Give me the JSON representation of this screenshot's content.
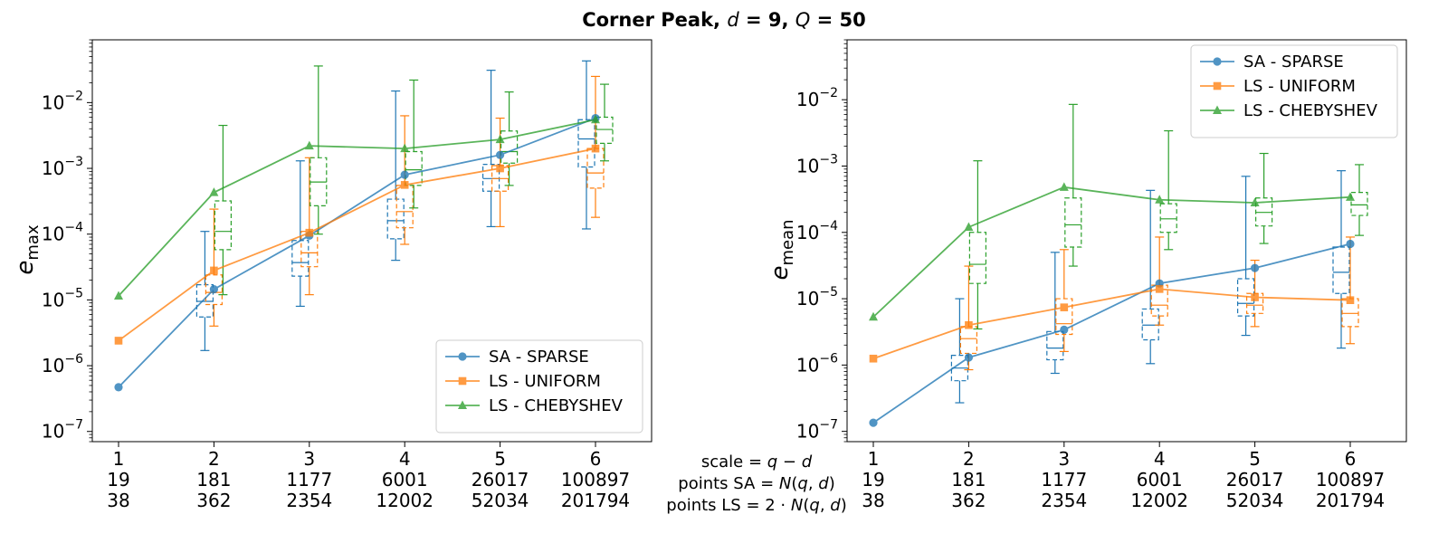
{
  "chart_data": [
    {
      "type": "line",
      "title_parts": [
        "Corner Peak, ",
        "d",
        " = 9, ",
        "Q",
        " = 50"
      ],
      "ylabel_main": "e",
      "ylabel_sub": "max",
      "yscale": "log",
      "ylim": [
        7e-08,
        0.09
      ],
      "yticks": [
        1e-07,
        1e-06,
        1e-05,
        0.0001,
        0.001,
        0.01
      ],
      "ytick_labels": [
        [
          "10",
          "−7"
        ],
        [
          "10",
          "−6"
        ],
        [
          "10",
          "−5"
        ],
        [
          "10",
          "−4"
        ],
        [
          "10",
          "−3"
        ],
        [
          "10",
          "−2"
        ]
      ],
      "categories": [
        "1",
        "2",
        "3",
        "4",
        "5",
        "6"
      ],
      "tick_rows": [
        [
          "1",
          "2",
          "3",
          "4",
          "5",
          "6"
        ],
        [
          "19",
          "181",
          "1177",
          "6001",
          "26017",
          "100897"
        ],
        [
          "38",
          "362",
          "2354",
          "12002",
          "52034",
          "201794"
        ]
      ],
      "legend_position": "lower right",
      "series": [
        {
          "name": "SA - SPARSE",
          "color": "#1f77b4",
          "marker": "circle",
          "values": [
            4.7e-07,
            1.45e-05,
            9.5e-05,
            0.0008,
            0.0016,
            0.0058
          ]
        },
        {
          "name": "LS - UNIFORM",
          "color": "#ff7f0e",
          "marker": "square",
          "values": [
            2.4e-06,
            2.8e-05,
            0.000105,
            0.00056,
            0.001,
            0.002
          ]
        },
        {
          "name": "LS - CHEBYSHEV",
          "color": "#2ca02c",
          "marker": "triangle",
          "values": [
            1.15e-05,
            0.00043,
            0.0022,
            0.002,
            0.00275,
            0.0055
          ]
        }
      ],
      "boxes": [
        {
          "series": 0,
          "x": 2,
          "whislo": 1.7e-06,
          "q1": 5.5e-06,
          "med": 9.5e-06,
          "q3": 1.7e-05,
          "whishi": 0.00011
        },
        {
          "series": 1,
          "x": 2,
          "whislo": 4e-06,
          "q1": 8.5e-06,
          "med": 1.3e-05,
          "q3": 2.4e-05,
          "whishi": 0.00024
        },
        {
          "series": 2,
          "x": 2,
          "whislo": 1.2e-05,
          "q1": 5.8e-05,
          "med": 0.00011,
          "q3": 0.00032,
          "whishi": 0.0045
        },
        {
          "series": 0,
          "x": 3,
          "whislo": 8e-06,
          "q1": 2.3e-05,
          "med": 3.7e-05,
          "q3": 8e-05,
          "whishi": 0.0013
        },
        {
          "series": 1,
          "x": 3,
          "whislo": 1.2e-05,
          "q1": 3.2e-05,
          "med": 5.2e-05,
          "q3": 0.00011,
          "whishi": 0.00145
        },
        {
          "series": 2,
          "x": 3,
          "whislo": 0.0001,
          "q1": 0.00027,
          "med": 0.00062,
          "q3": 0.00145,
          "whishi": 0.036
        },
        {
          "series": 0,
          "x": 4,
          "whislo": 4e-05,
          "q1": 8.5e-05,
          "med": 0.00016,
          "q3": 0.00034,
          "whishi": 0.015
        },
        {
          "series": 1,
          "x": 4,
          "whislo": 7e-05,
          "q1": 0.000125,
          "med": 0.00022,
          "q3": 0.00055,
          "whishi": 0.0063
        },
        {
          "series": 2,
          "x": 4,
          "whislo": 0.00025,
          "q1": 0.00055,
          "med": 0.00095,
          "q3": 0.0018,
          "whishi": 0.022
        },
        {
          "series": 0,
          "x": 5,
          "whislo": 0.00013,
          "q1": 0.00045,
          "med": 0.0007,
          "q3": 0.00115,
          "whishi": 0.031
        },
        {
          "series": 1,
          "x": 5,
          "whislo": 0.00013,
          "q1": 0.00045,
          "med": 0.0007,
          "q3": 0.0011,
          "whishi": 0.0058
        },
        {
          "series": 2,
          "x": 5,
          "whislo": 0.00055,
          "q1": 0.0012,
          "med": 0.0018,
          "q3": 0.0037,
          "whishi": 0.0145
        },
        {
          "series": 0,
          "x": 6,
          "whislo": 0.00012,
          "q1": 0.00105,
          "med": 0.0028,
          "q3": 0.0055,
          "whishi": 0.043
        },
        {
          "series": 1,
          "x": 6,
          "whislo": 0.00018,
          "q1": 0.0005,
          "med": 0.00085,
          "q3": 0.002,
          "whishi": 0.025
        },
        {
          "series": 2,
          "x": 6,
          "whislo": 0.0013,
          "q1": 0.0024,
          "med": 0.0039,
          "q3": 0.006,
          "whishi": 0.019
        }
      ]
    },
    {
      "type": "line",
      "ylabel_main": "e",
      "ylabel_sub": "mean",
      "yscale": "log",
      "ylim": [
        7e-08,
        0.08
      ],
      "yticks": [
        1e-07,
        1e-06,
        1e-05,
        0.0001,
        0.001,
        0.01
      ],
      "ytick_labels": [
        [
          "10",
          "−7"
        ],
        [
          "10",
          "−6"
        ],
        [
          "10",
          "−5"
        ],
        [
          "10",
          "−4"
        ],
        [
          "10",
          "−3"
        ],
        [
          "10",
          "−2"
        ]
      ],
      "categories": [
        "1",
        "2",
        "3",
        "4",
        "5",
        "6"
      ],
      "tick_rows": [
        [
          "1",
          "2",
          "3",
          "4",
          "5",
          "6"
        ],
        [
          "19",
          "181",
          "1177",
          "6001",
          "26017",
          "100897"
        ],
        [
          "38",
          "362",
          "2354",
          "12002",
          "52034",
          "201794"
        ]
      ],
      "legend_position": "upper right",
      "series": [
        {
          "name": "SA - SPARSE",
          "color": "#1f77b4",
          "marker": "circle",
          "values": [
            1.35e-07,
            1.3e-06,
            3.4e-06,
            1.7e-05,
            2.9e-05,
            6.7e-05
          ]
        },
        {
          "name": "LS - UNIFORM",
          "color": "#ff7f0e",
          "marker": "square",
          "values": [
            1.25e-06,
            4e-06,
            7.4e-06,
            1.4e-05,
            1.05e-05,
            9.5e-06
          ]
        },
        {
          "name": "LS - CHEBYSHEV",
          "color": "#2ca02c",
          "marker": "triangle",
          "values": [
            5.3e-06,
            0.00012,
            0.00048,
            0.00031,
            0.00028,
            0.00034
          ]
        }
      ],
      "boxes": [
        {
          "series": 0,
          "x": 2,
          "whislo": 2.7e-07,
          "q1": 5.8e-07,
          "med": 9e-07,
          "q3": 1.4e-06,
          "whishi": 1e-05
        },
        {
          "series": 1,
          "x": 2,
          "whislo": 8.5e-07,
          "q1": 1.5e-06,
          "med": 2.5e-06,
          "q3": 3.8e-06,
          "whishi": 3.1e-05
        },
        {
          "series": 2,
          "x": 2,
          "whislo": 3.5e-06,
          "q1": 1.7e-05,
          "med": 3.3e-05,
          "q3": 0.0001,
          "whishi": 0.0012
        },
        {
          "series": 0,
          "x": 3,
          "whislo": 7.5e-07,
          "q1": 1.2e-06,
          "med": 1.8e-06,
          "q3": 3.2e-06,
          "whishi": 5e-05
        },
        {
          "series": 1,
          "x": 3,
          "whislo": 1.6e-06,
          "q1": 2.9e-06,
          "med": 4.2e-06,
          "q3": 1e-05,
          "whishi": 5.5e-05
        },
        {
          "series": 2,
          "x": 3,
          "whislo": 3.1e-05,
          "q1": 6e-05,
          "med": 0.00013,
          "q3": 0.00033,
          "whishi": 0.0085
        },
        {
          "series": 0,
          "x": 4,
          "whislo": 1.05e-06,
          "q1": 2.4e-06,
          "med": 4e-06,
          "q3": 7e-06,
          "whishi": 0.00043
        },
        {
          "series": 1,
          "x": 4,
          "whislo": 4e-06,
          "q1": 5.5e-06,
          "med": 8e-06,
          "q3": 1.6e-05,
          "whishi": 8.5e-05
        },
        {
          "series": 2,
          "x": 4,
          "whislo": 5.5e-05,
          "q1": 0.0001,
          "med": 0.00016,
          "q3": 0.00027,
          "whishi": 0.0034
        },
        {
          "series": 0,
          "x": 5,
          "whislo": 2.8e-06,
          "q1": 5.5e-06,
          "med": 8.5e-06,
          "q3": 2e-05,
          "whishi": 0.0007
        },
        {
          "series": 1,
          "x": 5,
          "whislo": 3.8e-06,
          "q1": 6e-06,
          "med": 8e-06,
          "q3": 1.2e-05,
          "whishi": 3.8e-05
        },
        {
          "series": 2,
          "x": 5,
          "whislo": 6.8e-05,
          "q1": 0.000125,
          "med": 0.0002,
          "q3": 0.00033,
          "whishi": 0.00155
        },
        {
          "series": 0,
          "x": 6,
          "whislo": 1.8e-06,
          "q1": 1.2e-05,
          "med": 2.5e-05,
          "q3": 6e-05,
          "whishi": 0.00085
        },
        {
          "series": 1,
          "x": 6,
          "whislo": 2.1e-06,
          "q1": 3.8e-06,
          "med": 6e-06,
          "q3": 1e-05,
          "whishi": 8.5e-05
        },
        {
          "series": 2,
          "x": 6,
          "whislo": 9e-05,
          "q1": 0.00018,
          "med": 0.00026,
          "q3": 0.0004,
          "whishi": 0.00105
        }
      ]
    }
  ],
  "shared_xlabel_rows": [
    [
      "scale = ",
      "q",
      " − ",
      "d"
    ],
    [
      "points SA = ",
      "N",
      "(",
      "q",
      ", ",
      "d",
      ")"
    ],
    [
      "points LS = 2 · ",
      "N",
      "(",
      "q",
      ", ",
      "d",
      ")"
    ]
  ]
}
